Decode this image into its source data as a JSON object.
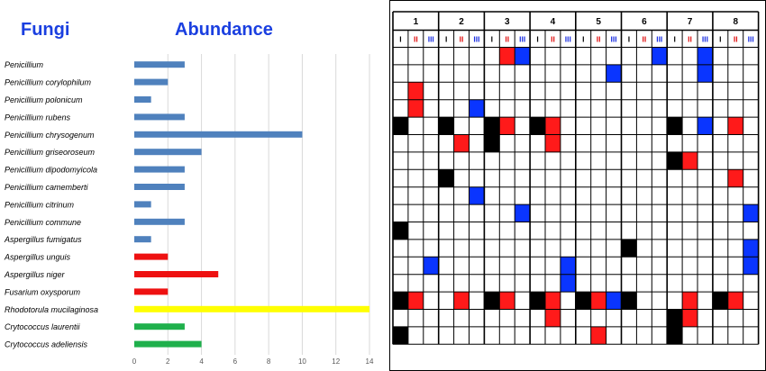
{
  "titles": {
    "left": "Fungi",
    "right": "Abundance"
  },
  "colors": {
    "blue": "#4f81bd",
    "red": "#ee1111",
    "yellow": "#ffff00",
    "green": "#1fb04c",
    "cell_blue": "#0a35ff",
    "cell_red": "#ff1a1a",
    "cell_black": "#000000",
    "title": "#1a3fe0",
    "roman_red": "#e01010",
    "roman_blue": "#1a2ee0"
  },
  "chart_data": [
    {
      "type": "bar",
      "orientation": "horizontal",
      "categories": [
        "Penicillium",
        "Penicillium corylophilum",
        "Penicillium polonicum",
        "Penicillium rubens",
        "Penicillium chrysogenum",
        "Penicillium griseoroseum",
        "Penicillium dipodomyicola",
        "Penicillium camemberti",
        "Penicillium citrinum",
        "Penicillium commune",
        "Aspergillus fumigatus",
        "Aspergillus unguis",
        "Aspergillus niger",
        "Fusarium oxysporum",
        "Rhodotorula mucilaginosa",
        "Crytococcus laurentii",
        "Crytococcus adeliensis"
      ],
      "values": [
        3,
        2,
        1,
        3,
        10,
        4,
        3,
        3,
        1,
        3,
        1,
        2,
        5,
        2,
        14,
        3,
        4
      ],
      "bar_colors": [
        "blue",
        "blue",
        "blue",
        "blue",
        "blue",
        "blue",
        "blue",
        "blue",
        "blue",
        "blue",
        "blue",
        "red",
        "red",
        "red",
        "yellow",
        "green",
        "green"
      ],
      "x_ticks": [
        "0",
        "2",
        "4",
        "6",
        "8",
        "10",
        "12",
        "14"
      ],
      "xlim": [
        0,
        14
      ],
      "grid": "vertical"
    },
    {
      "type": "heatmap",
      "groups": [
        "1",
        "2",
        "3",
        "4",
        "5",
        "6",
        "7",
        "8"
      ],
      "subcolumns": [
        "I",
        "II",
        "III"
      ],
      "subcolumn_colors": [
        "black",
        "roman_red",
        "roman_blue"
      ],
      "rows": 17,
      "cells": [
        [
          [
            2,
            2
          ],
          [
            2,
            3
          ],
          [
            5,
            3
          ],
          [
            6,
            3
          ]
        ],
        [
          [
            4,
            3
          ],
          [
            6,
            3
          ]
        ],
        [
          [
            0,
            2
          ]
        ],
        [
          [
            0,
            2
          ],
          [
            1,
            3
          ]
        ],
        [
          [
            0,
            1
          ],
          [
            1,
            1
          ],
          [
            2,
            1
          ],
          [
            2,
            2
          ],
          [
            3,
            1
          ],
          [
            3,
            2
          ],
          [
            6,
            1
          ],
          [
            6,
            3
          ],
          [
            7,
            2
          ]
        ],
        [
          [
            1,
            2
          ],
          [
            2,
            1
          ],
          [
            3,
            2
          ]
        ],
        [
          [
            6,
            1
          ],
          [
            6,
            2
          ]
        ],
        [
          [
            1,
            1
          ],
          [
            7,
            2
          ]
        ],
        [
          [
            1,
            3
          ]
        ],
        [
          [
            2,
            3
          ],
          [
            7,
            3
          ]
        ],
        [
          [
            0,
            1
          ]
        ],
        [
          [
            5,
            1
          ],
          [
            7,
            3
          ]
        ],
        [
          [
            0,
            3
          ],
          [
            3,
            3
          ],
          [
            7,
            3
          ]
        ],
        [
          [
            3,
            3
          ]
        ],
        [
          [
            0,
            1
          ],
          [
            0,
            2
          ],
          [
            1,
            2
          ],
          [
            2,
            1
          ],
          [
            2,
            2
          ],
          [
            3,
            1
          ],
          [
            3,
            2
          ],
          [
            4,
            1
          ],
          [
            4,
            2
          ],
          [
            4,
            3
          ],
          [
            5,
            1
          ],
          [
            6,
            2
          ],
          [
            7,
            1
          ],
          [
            7,
            2
          ]
        ],
        [
          [
            3,
            2
          ],
          [
            6,
            1
          ],
          [
            6,
            2
          ]
        ],
        [
          [
            0,
            1
          ],
          [
            4,
            2
          ],
          [
            6,
            1
          ]
        ]
      ]
    }
  ]
}
